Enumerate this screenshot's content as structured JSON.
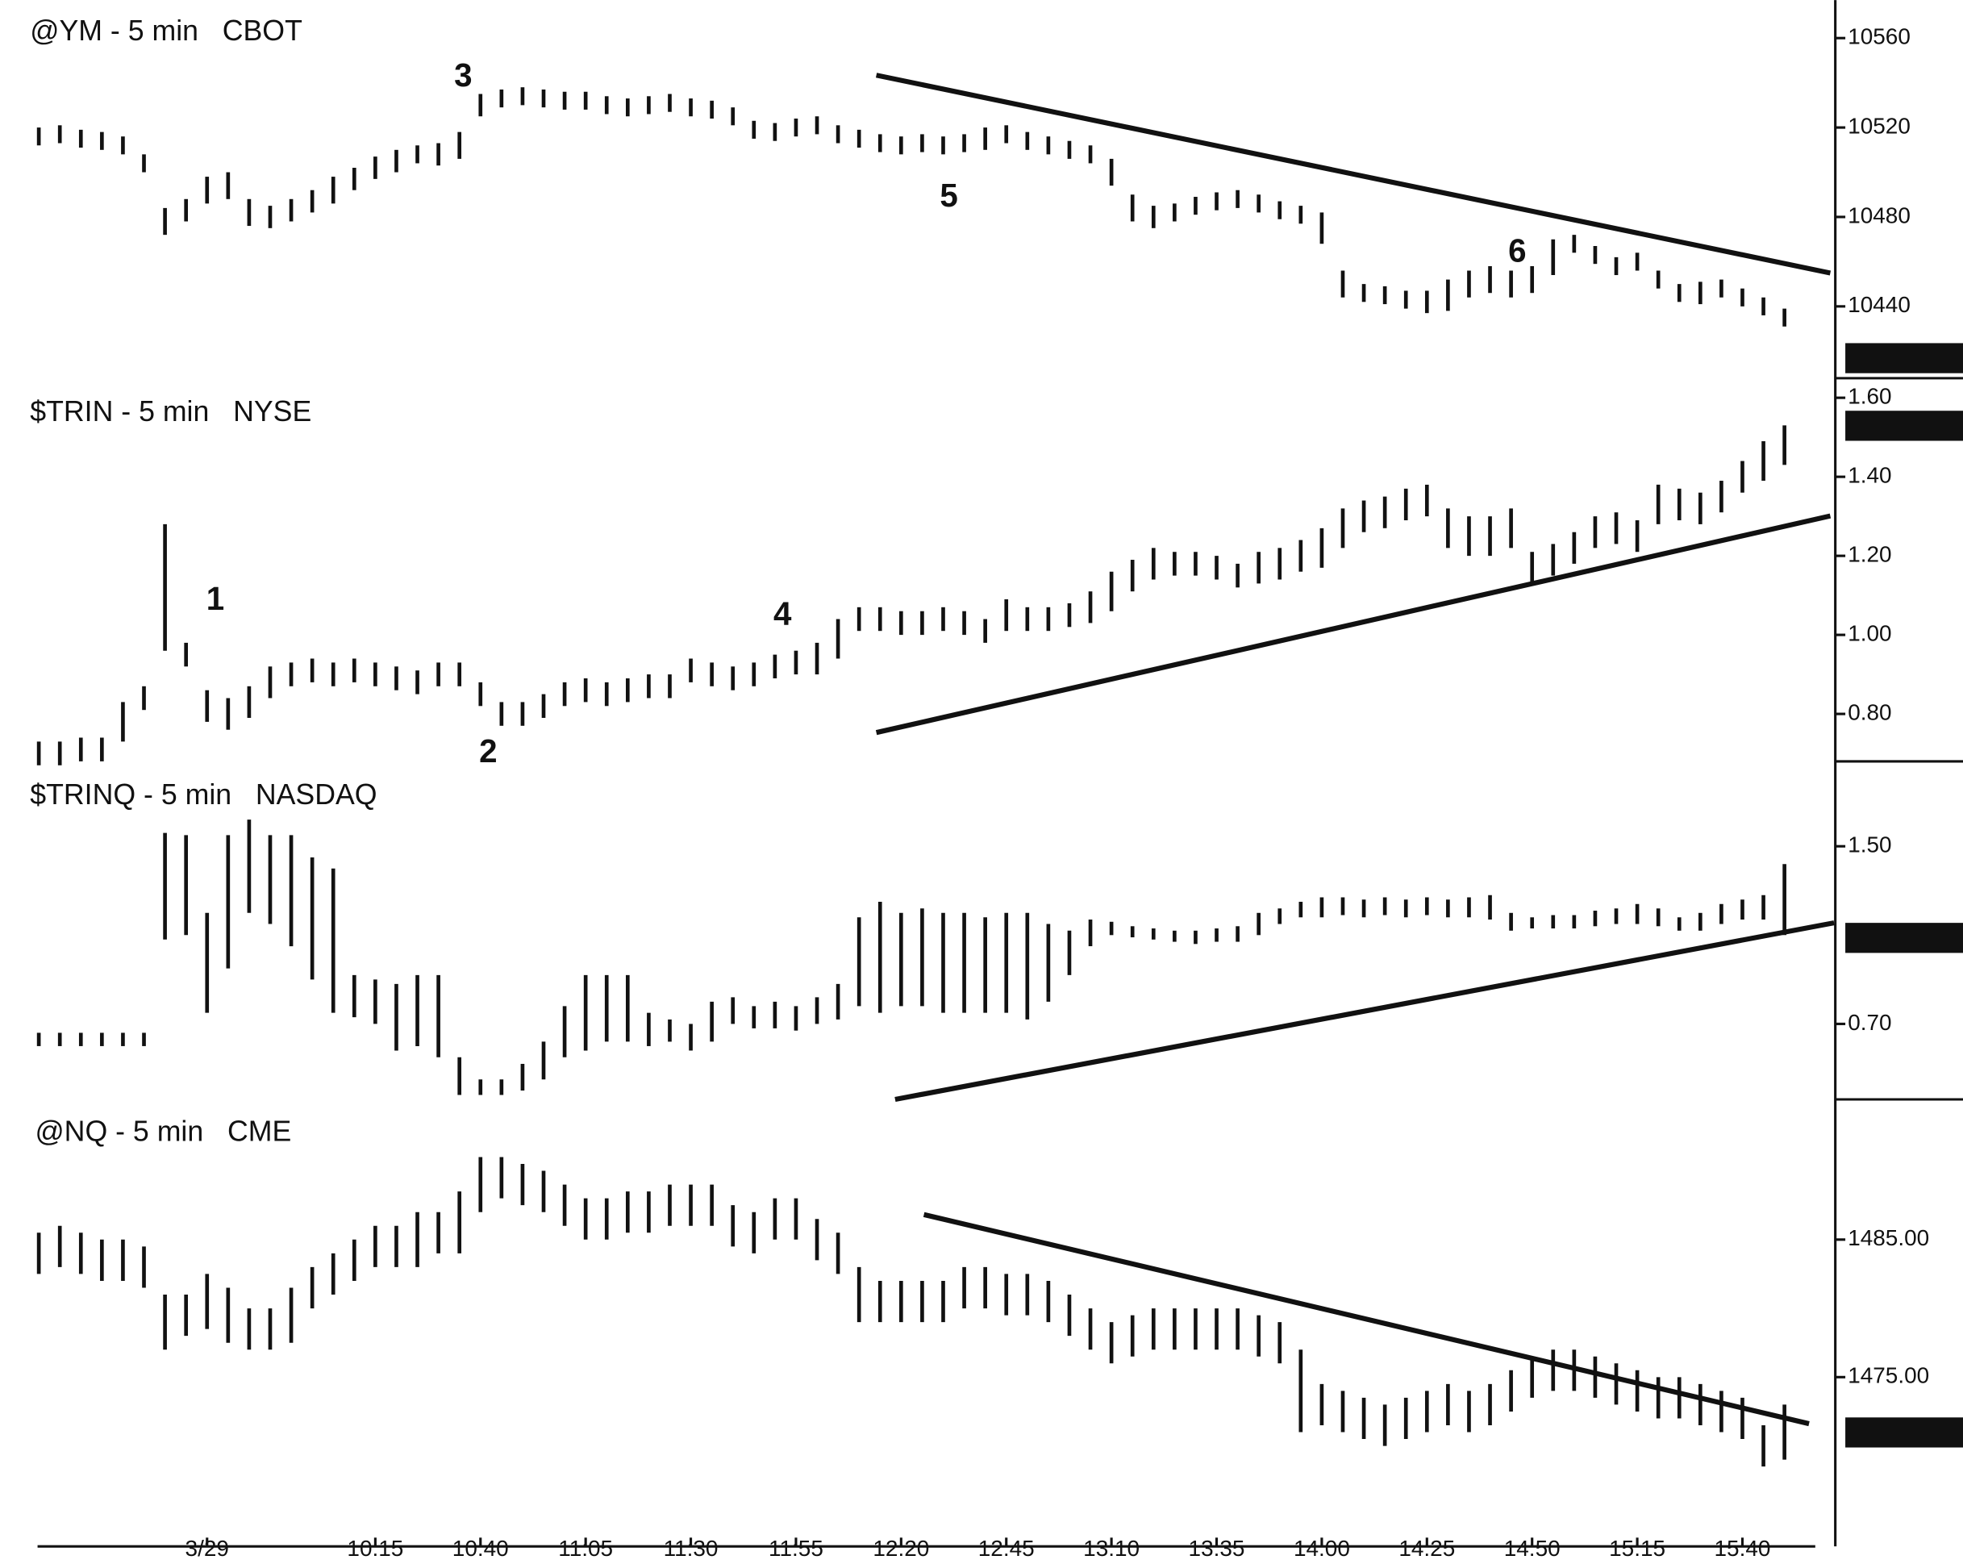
{
  "chart_data": [
    {
      "type": "ohlc",
      "title": "@YM - 5 min   CBOT",
      "ylim": [
        10409,
        10577
      ],
      "yticks": [
        10440,
        10480,
        10520,
        10560
      ],
      "annotations": [
        "3",
        "5",
        "6"
      ],
      "high": [
        10520,
        10521,
        10519,
        10518,
        10516,
        10508,
        10484,
        10488,
        10498,
        10500,
        10488,
        10485,
        10488,
        10492,
        10498,
        10502,
        10507,
        10510,
        10512,
        10513,
        10518,
        10535,
        10537,
        10538,
        10537,
        10536,
        10536,
        10534,
        10533,
        10534,
        10535,
        10533,
        10532,
        10529,
        10523,
        10522,
        10524,
        10525,
        10521,
        10519,
        10517,
        10516,
        10517,
        10516,
        10517,
        10520,
        10521,
        10518,
        10516,
        10514,
        10512,
        10506,
        10490,
        10485,
        10486,
        10489,
        10491,
        10492,
        10490,
        10487,
        10485,
        10482,
        10456,
        10450,
        10449,
        10447,
        10447,
        10452,
        10456,
        10458,
        10456,
        10458,
        10470,
        10472,
        10467,
        10462,
        10464,
        10456,
        10450,
        10451,
        10452,
        10448,
        10444,
        10439
      ],
      "low": [
        10512,
        10513,
        10511,
        10510,
        10508,
        10500,
        10472,
        10478,
        10486,
        10488,
        10476,
        10475,
        10478,
        10482,
        10486,
        10492,
        10497,
        10500,
        10504,
        10503,
        10506,
        10525,
        10529,
        10530,
        10529,
        10528,
        10528,
        10526,
        10525,
        10526,
        10527,
        10525,
        10524,
        10521,
        10515,
        10514,
        10516,
        10517,
        10513,
        10511,
        10509,
        10508,
        10509,
        10508,
        10509,
        10510,
        10513,
        10510,
        10508,
        10506,
        10504,
        10494,
        10478,
        10475,
        10478,
        10481,
        10483,
        10484,
        10482,
        10479,
        10477,
        10468,
        10444,
        10442,
        10441,
        10439,
        10437,
        10438,
        10444,
        10446,
        10444,
        10446,
        10454,
        10464,
        10459,
        10454,
        10456,
        10448,
        10442,
        10441,
        10444,
        10440,
        10436,
        10431
      ]
    },
    {
      "type": "ohlc",
      "title": "$TRIN - 5 min   NYSE",
      "ylim": [
        0.68,
        1.64
      ],
      "yticks": [
        {
          "value": 0.8,
          "label": "0.80"
        },
        {
          "value": 1.0,
          "label": "1.00"
        },
        {
          "value": 1.2,
          "label": "1.20"
        },
        {
          "value": 1.4,
          "label": "1.40"
        },
        {
          "value": 1.6,
          "label": "1.60"
        }
      ],
      "annotations": [
        "1",
        "2",
        "4"
      ],
      "high": [
        0.73,
        0.73,
        0.74,
        0.74,
        0.83,
        0.87,
        1.28,
        0.98,
        0.86,
        0.84,
        0.87,
        0.92,
        0.93,
        0.94,
        0.93,
        0.94,
        0.93,
        0.92,
        0.91,
        0.93,
        0.93,
        0.88,
        0.83,
        0.83,
        0.85,
        0.88,
        0.89,
        0.88,
        0.89,
        0.9,
        0.9,
        0.94,
        0.93,
        0.92,
        0.93,
        0.95,
        0.96,
        0.98,
        1.04,
        1.07,
        1.07,
        1.06,
        1.06,
        1.07,
        1.06,
        1.04,
        1.09,
        1.07,
        1.07,
        1.08,
        1.11,
        1.16,
        1.19,
        1.22,
        1.21,
        1.21,
        1.2,
        1.18,
        1.21,
        1.22,
        1.24,
        1.27,
        1.32,
        1.34,
        1.35,
        1.37,
        1.38,
        1.32,
        1.3,
        1.3,
        1.32,
        1.21,
        1.23,
        1.26,
        1.3,
        1.31,
        1.29,
        1.38,
        1.37,
        1.36,
        1.39,
        1.44,
        1.49,
        1.53
      ],
      "low": [
        0.67,
        0.67,
        0.68,
        0.68,
        0.73,
        0.81,
        0.96,
        0.92,
        0.78,
        0.76,
        0.79,
        0.84,
        0.87,
        0.88,
        0.87,
        0.88,
        0.87,
        0.86,
        0.85,
        0.87,
        0.87,
        0.82,
        0.77,
        0.77,
        0.79,
        0.82,
        0.83,
        0.82,
        0.83,
        0.84,
        0.84,
        0.88,
        0.87,
        0.86,
        0.87,
        0.89,
        0.9,
        0.9,
        0.94,
        1.01,
        1.01,
        1.0,
        1.0,
        1.01,
        1.0,
        0.98,
        1.01,
        1.01,
        1.01,
        1.02,
        1.03,
        1.06,
        1.11,
        1.14,
        1.15,
        1.15,
        1.14,
        1.12,
        1.13,
        1.14,
        1.16,
        1.17,
        1.22,
        1.26,
        1.27,
        1.29,
        1.3,
        1.22,
        1.2,
        1.2,
        1.22,
        1.13,
        1.15,
        1.18,
        1.22,
        1.23,
        1.21,
        1.28,
        1.29,
        1.28,
        1.31,
        1.36,
        1.39,
        1.43
      ]
    },
    {
      "type": "ohlc",
      "title": "$TRINQ - 5 min   NASDAQ",
      "ylim": [
        0.36,
        1.86
      ],
      "yticks": [
        {
          "value": 0.7,
          "label": "0.70"
        },
        {
          "value": 1.5,
          "label": "1.50"
        }
      ],
      "high": [
        0.66,
        0.66,
        0.66,
        0.66,
        0.66,
        0.66,
        1.56,
        1.55,
        1.2,
        1.55,
        1.62,
        1.55,
        1.55,
        1.45,
        1.4,
        0.92,
        0.9,
        0.88,
        0.92,
        0.92,
        0.55,
        0.45,
        0.45,
        0.52,
        0.62,
        0.78,
        0.92,
        0.92,
        0.92,
        0.75,
        0.72,
        0.7,
        0.8,
        0.82,
        0.78,
        0.8,
        0.78,
        0.82,
        0.88,
        1.18,
        1.25,
        1.2,
        1.22,
        1.2,
        1.2,
        1.18,
        1.2,
        1.2,
        1.15,
        1.12,
        1.17,
        1.16,
        1.14,
        1.13,
        1.12,
        1.12,
        1.13,
        1.14,
        1.2,
        1.22,
        1.25,
        1.27,
        1.27,
        1.26,
        1.27,
        1.26,
        1.27,
        1.26,
        1.27,
        1.28,
        1.2,
        1.18,
        1.19,
        1.19,
        1.21,
        1.22,
        1.24,
        1.22,
        1.18,
        1.2,
        1.24,
        1.26,
        1.28,
        1.42
      ],
      "low": [
        0.6,
        0.6,
        0.6,
        0.6,
        0.6,
        0.6,
        1.08,
        1.1,
        0.75,
        0.95,
        1.2,
        1.15,
        1.05,
        0.9,
        0.75,
        0.73,
        0.7,
        0.58,
        0.6,
        0.55,
        0.38,
        0.38,
        0.38,
        0.4,
        0.45,
        0.55,
        0.58,
        0.62,
        0.62,
        0.6,
        0.62,
        0.58,
        0.62,
        0.7,
        0.68,
        0.68,
        0.67,
        0.7,
        0.72,
        0.78,
        0.75,
        0.78,
        0.78,
        0.75,
        0.75,
        0.75,
        0.75,
        0.72,
        0.8,
        0.92,
        1.05,
        1.1,
        1.09,
        1.08,
        1.07,
        1.06,
        1.07,
        1.07,
        1.1,
        1.15,
        1.18,
        1.18,
        1.19,
        1.18,
        1.19,
        1.18,
        1.19,
        1.18,
        1.18,
        1.17,
        1.12,
        1.13,
        1.13,
        1.13,
        1.14,
        1.15,
        1.15,
        1.14,
        1.12,
        1.12,
        1.15,
        1.17,
        1.17,
        1.1
      ]
    },
    {
      "type": "ohlc",
      "title": "@NQ - 5 min   CME",
      "ylim": [
        1467.7,
        1494.1
      ],
      "yticks": [
        {
          "value": 1475,
          "label": "1475.00"
        },
        {
          "value": 1485,
          "label": "1485.00"
        }
      ],
      "categories": [
        null,
        null,
        null,
        null,
        null,
        null,
        null,
        null,
        "3/29",
        null,
        null,
        null,
        null,
        null,
        null,
        null,
        "10:15",
        null,
        null,
        null,
        null,
        "10:40",
        null,
        null,
        null,
        null,
        "11:05",
        null,
        null,
        null,
        null,
        "11:30",
        null,
        null,
        null,
        null,
        "11:55",
        null,
        null,
        null,
        null,
        "12:20",
        null,
        null,
        null,
        null,
        "12:45",
        null,
        null,
        null,
        null,
        "13:10",
        null,
        null,
        null,
        null,
        "13:35",
        null,
        null,
        null,
        null,
        "14:00",
        null,
        null,
        null,
        null,
        "14:25",
        null,
        null,
        null,
        null,
        "14:50",
        null,
        null,
        null,
        null,
        "15:15",
        null,
        null,
        null,
        null,
        "15:40",
        null,
        null
      ],
      "high": [
        1485.5,
        1486,
        1485.5,
        1485,
        1485,
        1484.5,
        1481,
        1481,
        1482.5,
        1481.5,
        1480,
        1480,
        1481.5,
        1483,
        1484,
        1485,
        1486,
        1486,
        1487,
        1487,
        1488.5,
        1491,
        1491,
        1490.5,
        1490,
        1489,
        1488,
        1488,
        1488.5,
        1488.5,
        1489,
        1489,
        1489,
        1487.5,
        1487,
        1488,
        1488,
        1486.5,
        1485.5,
        1483,
        1482,
        1482,
        1482,
        1482,
        1483,
        1483,
        1482.5,
        1482.5,
        1482,
        1481,
        1480,
        1479,
        1479.5,
        1480,
        1480,
        1480,
        1480,
        1480,
        1479.5,
        1479,
        1477,
        1474.5,
        1474,
        1473.5,
        1473,
        1473.5,
        1474,
        1474.5,
        1474,
        1474.5,
        1475.5,
        1476.5,
        1477,
        1477,
        1476.5,
        1476,
        1475.5,
        1475,
        1475,
        1474.5,
        1474,
        1473.5,
        1471.5,
        1473
      ],
      "low": [
        1482.5,
        1483,
        1482.5,
        1482,
        1482,
        1481.5,
        1477,
        1478,
        1478.5,
        1477.5,
        1477,
        1477,
        1477.5,
        1480,
        1481,
        1482,
        1483,
        1483,
        1483,
        1484,
        1484,
        1487,
        1488,
        1487.5,
        1487,
        1486,
        1485,
        1485,
        1485.5,
        1485.5,
        1486,
        1486,
        1486,
        1484.5,
        1484,
        1485,
        1485,
        1483.5,
        1482.5,
        1479,
        1479,
        1479,
        1479,
        1479,
        1480,
        1480,
        1479.5,
        1479.5,
        1479,
        1478,
        1477,
        1476,
        1476.5,
        1477,
        1477,
        1477,
        1477,
        1477,
        1476.5,
        1476,
        1471,
        1471.5,
        1471,
        1470.5,
        1470,
        1470.5,
        1471,
        1471.5,
        1471,
        1471.5,
        1472.5,
        1473.5,
        1474,
        1474,
        1473.5,
        1473,
        1472.5,
        1472,
        1472,
        1471.5,
        1471,
        1470.5,
        1468.5,
        1469
      ]
    }
  ]
}
